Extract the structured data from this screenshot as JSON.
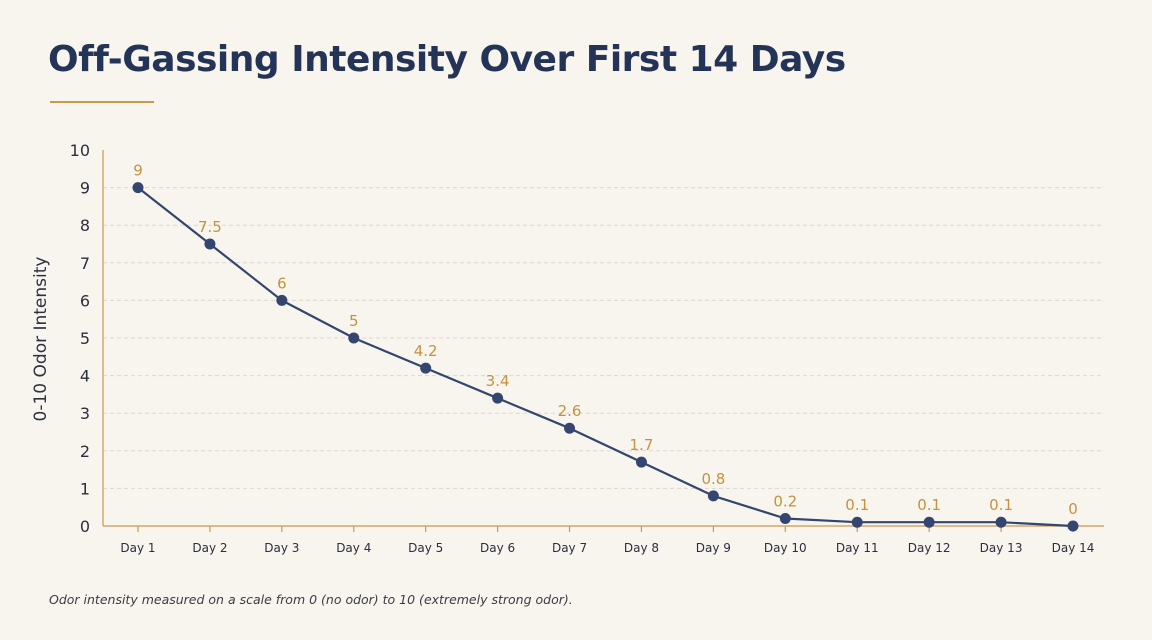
{
  "title": "Off-Gassing Intensity Over First 14 Days",
  "footnote": "Odor intensity measured on a scale from 0 (no odor) to 10 (extremely strong odor).",
  "colors": {
    "background": "#f8f5ee",
    "title": "#243457",
    "accent": "#c99a4a",
    "line": "#34466f",
    "label": "#c49240",
    "grid": "#dcd8cf"
  },
  "chart_data": {
    "type": "line",
    "title": "Off-Gassing Intensity Over First 14 Days",
    "xlabel": "",
    "ylabel": "0-10 Odor Intensity",
    "ylim": [
      0,
      10
    ],
    "yticks": [
      "0",
      "1",
      "2",
      "3",
      "4",
      "5",
      "6",
      "7",
      "8",
      "9",
      "10"
    ],
    "grid": "horizontal dashed",
    "categories": [
      "Day 1",
      "Day 2",
      "Day 3",
      "Day 4",
      "Day 5",
      "Day 6",
      "Day 7",
      "Day 8",
      "Day 9",
      "Day 10",
      "Day 11",
      "Day 12",
      "Day 13",
      "Day 14"
    ],
    "series": [
      {
        "values": [
          9,
          7.5,
          6,
          5,
          4.2,
          3.4,
          2.6,
          1.7,
          0.8,
          0.2,
          0.1,
          0.1,
          0.1,
          0
        ],
        "labels": [
          "9",
          "7.5",
          "6",
          "5",
          "4.2",
          "3.4",
          "2.6",
          "1.7",
          "0.8",
          "0.2",
          "0.1",
          "0.1",
          "0.1",
          "0"
        ]
      }
    ]
  }
}
